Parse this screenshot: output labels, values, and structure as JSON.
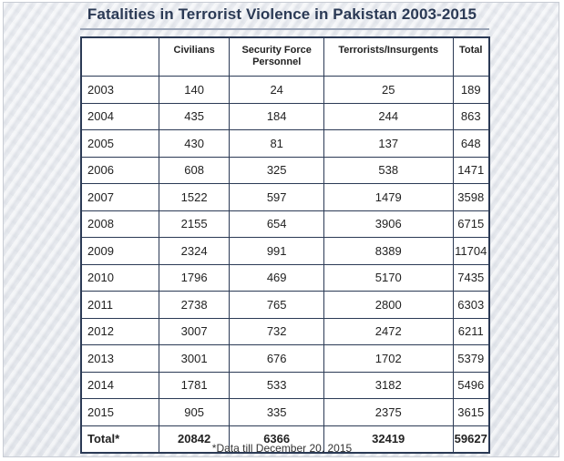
{
  "title": "Fatalities in Terrorist Violence in Pakistan 2003-2015",
  "table": {
    "headers": [
      "",
      "Civilians",
      "Security Force Personnel",
      "Terrorists/Insurgents",
      "Total"
    ],
    "rows": [
      [
        "2003",
        "140",
        "24",
        "25",
        "189"
      ],
      [
        "2004",
        "435",
        "184",
        "244",
        "863"
      ],
      [
        "2005",
        "430",
        "81",
        "137",
        "648"
      ],
      [
        "2006",
        "608",
        "325",
        "538",
        "1471"
      ],
      [
        "2007",
        "1522",
        "597",
        "1479",
        "3598"
      ],
      [
        "2008",
        "2155",
        "654",
        "3906",
        "6715"
      ],
      [
        "2009",
        "2324",
        "991",
        "8389",
        "11704"
      ],
      [
        "2010",
        "1796",
        "469",
        "5170",
        "7435"
      ],
      [
        "2011",
        "2738",
        "765",
        "2800",
        "6303"
      ],
      [
        "2012",
        "3007",
        "732",
        "2472",
        "6211"
      ],
      [
        "2013",
        "3001",
        "676",
        "1702",
        "5379"
      ],
      [
        "2014",
        "1781",
        "533",
        "3182",
        "5496"
      ],
      [
        "2015",
        "905",
        "335",
        "2375",
        "3615"
      ]
    ],
    "total_row": [
      "Total*",
      "20842",
      "6366",
      "32419",
      "59627"
    ]
  },
  "footnote": "*Data till December 20, 2015",
  "colors": {
    "title": "#2b3a55",
    "border": "#2b3a55",
    "background": "#e9ecf1"
  }
}
